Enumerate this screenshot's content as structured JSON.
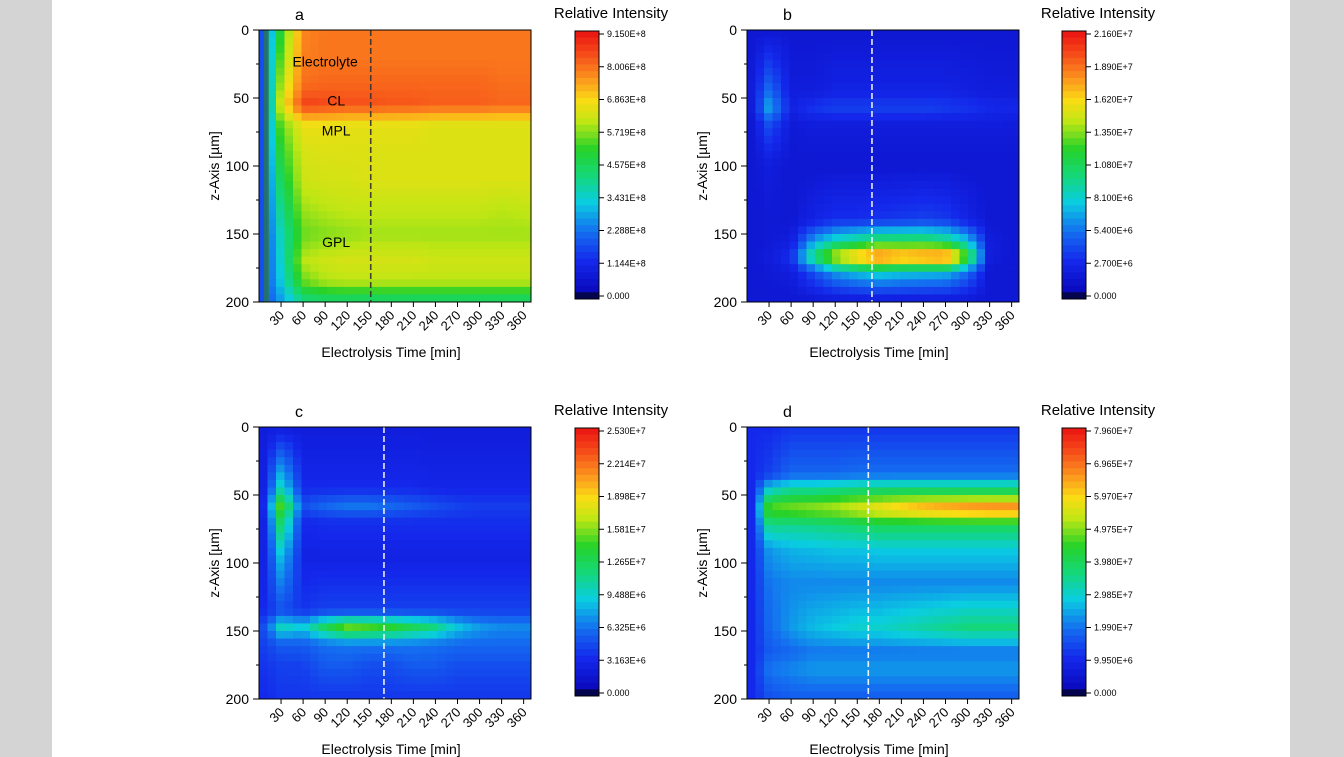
{
  "axis_tick_labels": {
    "z": [
      "0",
      "50",
      "100",
      "150",
      "200"
    ],
    "time": [
      "30",
      "60",
      "90",
      "120",
      "150",
      "180",
      "210",
      "240",
      "270",
      "300",
      "330",
      "360"
    ]
  },
  "chart_data": [
    {
      "panel": "a",
      "type": "heatmap",
      "title": "",
      "xlabel": "Electrolysis Time [min]",
      "ylabel": "z-Axis [µm]",
      "xlim": [
        0,
        370
      ],
      "ylim": [
        200,
        0
      ],
      "xticks": [
        30,
        60,
        90,
        120,
        150,
        180,
        210,
        240,
        270,
        300,
        330,
        360
      ],
      "yticks": [
        0,
        50,
        100,
        150,
        200
      ],
      "colorbar": {
        "title": "Relative Intensity",
        "min": 0,
        "max": 915000000,
        "ticks": [
          "9.150E+8",
          "8.006E+8",
          "6.863E+8",
          "5.719E+8",
          "4.575E+8",
          "3.431E+8",
          "2.288E+8",
          "1.144E+8",
          "0.000"
        ]
      },
      "marker_time": 152,
      "marker_color": "#333333",
      "annotations": [
        {
          "text": "Electrolyte",
          "t": 90,
          "z": 23,
          "color": "#1a1ad0"
        },
        {
          "text": "CL",
          "t": 105,
          "z": 52,
          "color": "#f0d000"
        },
        {
          "text": "MPL",
          "t": 105,
          "z": 74,
          "color": "#222222"
        },
        {
          "text": "GPL",
          "t": 105,
          "z": 156,
          "color": "#222222"
        }
      ],
      "field": [
        {
          "z": 0,
          "v": [
            0.2,
            0.55,
            0.84,
            0.86,
            0.86,
            0.86,
            0.86,
            0.86,
            0.86,
            0.86,
            0.86,
            0.86,
            0.86
          ]
        },
        {
          "z": 20,
          "v": [
            0.2,
            0.6,
            0.85,
            0.86,
            0.86,
            0.86,
            0.86,
            0.86,
            0.86,
            0.86,
            0.86,
            0.86,
            0.86
          ]
        },
        {
          "z": 40,
          "v": [
            0.2,
            0.65,
            0.87,
            0.88,
            0.88,
            0.88,
            0.88,
            0.88,
            0.88,
            0.88,
            0.88,
            0.87,
            0.87
          ]
        },
        {
          "z": 55,
          "v": [
            0.2,
            0.7,
            0.93,
            0.92,
            0.91,
            0.91,
            0.9,
            0.9,
            0.89,
            0.89,
            0.89,
            0.88,
            0.88
          ]
        },
        {
          "z": 70,
          "v": [
            0.2,
            0.6,
            0.72,
            0.72,
            0.71,
            0.71,
            0.71,
            0.71,
            0.7,
            0.7,
            0.7,
            0.7,
            0.7
          ]
        },
        {
          "z": 90,
          "v": [
            0.2,
            0.55,
            0.69,
            0.7,
            0.7,
            0.7,
            0.7,
            0.7,
            0.7,
            0.7,
            0.7,
            0.7,
            0.7
          ]
        },
        {
          "z": 110,
          "v": [
            0.2,
            0.5,
            0.68,
            0.69,
            0.69,
            0.7,
            0.7,
            0.7,
            0.7,
            0.7,
            0.7,
            0.7,
            0.7
          ]
        },
        {
          "z": 130,
          "v": [
            0.2,
            0.45,
            0.64,
            0.66,
            0.67,
            0.67,
            0.67,
            0.67,
            0.67,
            0.67,
            0.67,
            0.66,
            0.67
          ]
        },
        {
          "z": 150,
          "v": [
            0.2,
            0.4,
            0.6,
            0.62,
            0.63,
            0.64,
            0.64,
            0.64,
            0.64,
            0.64,
            0.64,
            0.64,
            0.64
          ]
        },
        {
          "z": 170,
          "v": [
            0.2,
            0.38,
            0.66,
            0.68,
            0.69,
            0.69,
            0.69,
            0.69,
            0.68,
            0.68,
            0.68,
            0.68,
            0.68
          ]
        },
        {
          "z": 185,
          "v": [
            0.2,
            0.36,
            0.6,
            0.65,
            0.66,
            0.66,
            0.66,
            0.66,
            0.66,
            0.66,
            0.66,
            0.66,
            0.66
          ]
        },
        {
          "z": 200,
          "v": [
            0.2,
            0.3,
            0.44,
            0.46,
            0.46,
            0.46,
            0.46,
            0.46,
            0.46,
            0.46,
            0.46,
            0.46,
            0.46
          ]
        }
      ]
    },
    {
      "panel": "b",
      "type": "heatmap",
      "title": "",
      "xlabel": "Electrolysis Time [min]",
      "ylabel": "z-Axis [µm]",
      "xlim": [
        0,
        370
      ],
      "ylim": [
        200,
        0
      ],
      "xticks": [
        30,
        60,
        90,
        120,
        150,
        180,
        210,
        240,
        270,
        300,
        330,
        360
      ],
      "yticks": [
        0,
        50,
        100,
        150,
        200
      ],
      "colorbar": {
        "title": "Relative Intensity",
        "min": 0,
        "max": 21600000,
        "ticks": [
          "2.160E+7",
          "1.890E+7",
          "1.620E+7",
          "1.350E+7",
          "1.080E+7",
          "8.100E+6",
          "5.400E+6",
          "2.700E+6",
          "0.000"
        ]
      },
      "marker_time": 170,
      "marker_color": "#ffffff",
      "annotations": [],
      "field": [
        {
          "z": 0,
          "v": [
            0.08,
            0.08,
            0.08,
            0.08,
            0.08,
            0.08,
            0.08,
            0.08,
            0.08,
            0.08,
            0.08,
            0.08,
            0.08
          ]
        },
        {
          "z": 45,
          "v": [
            0.1,
            0.25,
            0.1,
            0.1,
            0.12,
            0.12,
            0.12,
            0.12,
            0.12,
            0.12,
            0.11,
            0.1,
            0.1
          ]
        },
        {
          "z": 57,
          "v": [
            0.1,
            0.32,
            0.12,
            0.16,
            0.18,
            0.18,
            0.18,
            0.18,
            0.18,
            0.17,
            0.16,
            0.14,
            0.13
          ]
        },
        {
          "z": 70,
          "v": [
            0.08,
            0.2,
            0.09,
            0.1,
            0.1,
            0.1,
            0.1,
            0.1,
            0.1,
            0.1,
            0.1,
            0.1,
            0.1
          ]
        },
        {
          "z": 100,
          "v": [
            0.08,
            0.1,
            0.08,
            0.08,
            0.08,
            0.08,
            0.08,
            0.08,
            0.08,
            0.08,
            0.08,
            0.08,
            0.08
          ]
        },
        {
          "z": 140,
          "v": [
            0.08,
            0.09,
            0.08,
            0.12,
            0.15,
            0.15,
            0.16,
            0.17,
            0.18,
            0.17,
            0.12,
            0.08,
            0.08
          ]
        },
        {
          "z": 155,
          "v": [
            0.08,
            0.09,
            0.1,
            0.3,
            0.4,
            0.45,
            0.5,
            0.5,
            0.5,
            0.46,
            0.35,
            0.1,
            0.08
          ]
        },
        {
          "z": 167,
          "v": [
            0.08,
            0.1,
            0.15,
            0.48,
            0.7,
            0.82,
            0.9,
            0.86,
            0.88,
            0.9,
            0.6,
            0.1,
            0.08
          ]
        },
        {
          "z": 178,
          "v": [
            0.08,
            0.09,
            0.1,
            0.2,
            0.3,
            0.35,
            0.38,
            0.36,
            0.35,
            0.34,
            0.25,
            0.08,
            0.08
          ]
        },
        {
          "z": 200,
          "v": [
            0.08,
            0.08,
            0.08,
            0.08,
            0.08,
            0.08,
            0.08,
            0.08,
            0.08,
            0.08,
            0.08,
            0.08,
            0.08
          ]
        }
      ]
    },
    {
      "panel": "c",
      "type": "heatmap",
      "title": "",
      "xlabel": "Electrolysis Time [min]",
      "ylabel": "z-Axis [µm]",
      "xlim": [
        0,
        370
      ],
      "ylim": [
        200,
        0
      ],
      "xticks": [
        30,
        60,
        90,
        120,
        150,
        180,
        210,
        240,
        270,
        300,
        330,
        360
      ],
      "yticks": [
        0,
        50,
        100,
        150,
        200
      ],
      "colorbar": {
        "title": "Relative Intensity",
        "min": 0,
        "max": 25300000,
        "ticks": [
          "2.530E+7",
          "2.214E+7",
          "1.898E+7",
          "1.581E+7",
          "1.265E+7",
          "9.488E+6",
          "6.325E+6",
          "3.163E+6",
          "0.000"
        ]
      },
      "marker_time": 170,
      "marker_color": "#ffffff",
      "annotations": [],
      "field": [
        {
          "z": 0,
          "v": [
            0.1,
            0.1,
            0.1,
            0.1,
            0.1,
            0.1,
            0.1,
            0.1,
            0.1,
            0.1,
            0.1,
            0.1,
            0.1
          ]
        },
        {
          "z": 45,
          "v": [
            0.12,
            0.4,
            0.14,
            0.14,
            0.14,
            0.14,
            0.14,
            0.14,
            0.13,
            0.13,
            0.13,
            0.13,
            0.13
          ]
        },
        {
          "z": 58,
          "v": [
            0.14,
            0.6,
            0.2,
            0.24,
            0.26,
            0.26,
            0.24,
            0.22,
            0.2,
            0.18,
            0.17,
            0.17,
            0.17
          ]
        },
        {
          "z": 70,
          "v": [
            0.12,
            0.5,
            0.14,
            0.15,
            0.15,
            0.15,
            0.15,
            0.15,
            0.15,
            0.15,
            0.15,
            0.15,
            0.15
          ]
        },
        {
          "z": 95,
          "v": [
            0.12,
            0.35,
            0.12,
            0.12,
            0.12,
            0.12,
            0.12,
            0.12,
            0.12,
            0.12,
            0.12,
            0.12,
            0.12
          ]
        },
        {
          "z": 135,
          "v": [
            0.14,
            0.2,
            0.16,
            0.18,
            0.18,
            0.18,
            0.18,
            0.18,
            0.18,
            0.18,
            0.18,
            0.18,
            0.18
          ]
        },
        {
          "z": 147,
          "v": [
            0.2,
            0.4,
            0.35,
            0.5,
            0.6,
            0.58,
            0.55,
            0.5,
            0.45,
            0.35,
            0.3,
            0.28,
            0.28
          ]
        },
        {
          "z": 160,
          "v": [
            0.18,
            0.22,
            0.22,
            0.25,
            0.26,
            0.26,
            0.26,
            0.26,
            0.25,
            0.24,
            0.24,
            0.24,
            0.24
          ]
        },
        {
          "z": 175,
          "v": [
            0.16,
            0.18,
            0.18,
            0.22,
            0.22,
            0.2,
            0.2,
            0.22,
            0.22,
            0.2,
            0.2,
            0.2,
            0.2
          ]
        },
        {
          "z": 200,
          "v": [
            0.14,
            0.16,
            0.16,
            0.16,
            0.16,
            0.16,
            0.16,
            0.16,
            0.16,
            0.16,
            0.16,
            0.16,
            0.16
          ]
        }
      ]
    },
    {
      "panel": "d",
      "type": "heatmap",
      "title": "",
      "xlabel": "Electrolysis Time [min]",
      "ylabel": "z-Axis [µm]",
      "xlim": [
        0,
        370
      ],
      "ylim": [
        200,
        0
      ],
      "xticks": [
        30,
        60,
        90,
        120,
        150,
        180,
        210,
        240,
        270,
        300,
        330,
        360
      ],
      "yticks": [
        0,
        50,
        100,
        150,
        200
      ],
      "colorbar": {
        "title": "Relative Intensity",
        "min": 0,
        "max": 79600000,
        "ticks": [
          "7.960E+7",
          "6.965E+7",
          "5.970E+7",
          "4.975E+7",
          "3.980E+7",
          "2.985E+7",
          "1.990E+7",
          "9.950E+6",
          "0.000"
        ]
      },
      "marker_time": 165,
      "marker_color": "#ffffff",
      "annotations": [],
      "field": [
        {
          "z": 0,
          "v": [
            0.14,
            0.14,
            0.16,
            0.16,
            0.16,
            0.16,
            0.16,
            0.16,
            0.16,
            0.16,
            0.16,
            0.16,
            0.16
          ]
        },
        {
          "z": 35,
          "v": [
            0.14,
            0.18,
            0.24,
            0.24,
            0.24,
            0.25,
            0.25,
            0.25,
            0.25,
            0.25,
            0.25,
            0.25,
            0.25
          ]
        },
        {
          "z": 50,
          "v": [
            0.14,
            0.45,
            0.5,
            0.5,
            0.52,
            0.54,
            0.55,
            0.56,
            0.56,
            0.56,
            0.56,
            0.56,
            0.56
          ]
        },
        {
          "z": 60,
          "v": [
            0.14,
            0.6,
            0.62,
            0.64,
            0.66,
            0.7,
            0.74,
            0.78,
            0.82,
            0.84,
            0.86,
            0.87,
            0.87
          ]
        },
        {
          "z": 72,
          "v": [
            0.14,
            0.45,
            0.44,
            0.45,
            0.46,
            0.48,
            0.5,
            0.5,
            0.5,
            0.5,
            0.5,
            0.5,
            0.5
          ]
        },
        {
          "z": 90,
          "v": [
            0.14,
            0.3,
            0.33,
            0.34,
            0.35,
            0.35,
            0.36,
            0.36,
            0.36,
            0.36,
            0.36,
            0.36,
            0.36
          ]
        },
        {
          "z": 115,
          "v": [
            0.14,
            0.26,
            0.28,
            0.28,
            0.28,
            0.28,
            0.28,
            0.28,
            0.28,
            0.28,
            0.28,
            0.28,
            0.28
          ]
        },
        {
          "z": 148,
          "v": [
            0.14,
            0.24,
            0.3,
            0.34,
            0.36,
            0.38,
            0.38,
            0.4,
            0.42,
            0.44,
            0.46,
            0.46,
            0.46
          ]
        },
        {
          "z": 165,
          "v": [
            0.14,
            0.22,
            0.24,
            0.26,
            0.26,
            0.26,
            0.26,
            0.26,
            0.26,
            0.26,
            0.26,
            0.26,
            0.26
          ]
        },
        {
          "z": 178,
          "v": [
            0.14,
            0.26,
            0.28,
            0.3,
            0.3,
            0.3,
            0.3,
            0.3,
            0.3,
            0.3,
            0.3,
            0.3,
            0.3
          ]
        },
        {
          "z": 200,
          "v": [
            0.14,
            0.2,
            0.22,
            0.22,
            0.22,
            0.22,
            0.22,
            0.22,
            0.22,
            0.22,
            0.22,
            0.22,
            0.22
          ]
        }
      ]
    }
  ]
}
